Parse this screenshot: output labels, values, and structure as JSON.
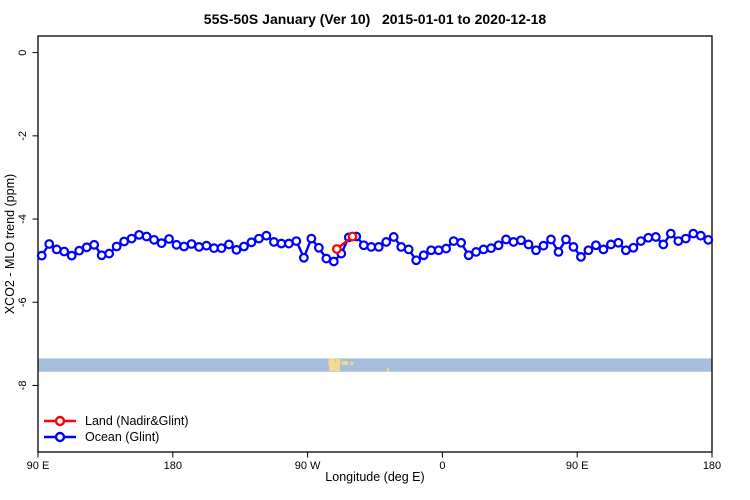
{
  "chart_data": {
    "type": "line",
    "title": "55S-50S January (Ver 10)   2015-01-01 to 2020-12-18",
    "xlabel": "Longitude (deg E)",
    "ylabel": "XCO2 - MLO trend (ppm)",
    "x_units_note": "deg E plotted 90..540, continuing eastward past 180 (270=90W, 360=0, 450=90E)",
    "xlim": [
      90,
      540
    ],
    "ylim": [
      -9.6,
      0.4
    ],
    "grid": false,
    "x_ticks": [
      {
        "pos": 90,
        "label": "90 E"
      },
      {
        "pos": 180,
        "label": "180"
      },
      {
        "pos": 270,
        "label": "90 W"
      },
      {
        "pos": 360,
        "label": "0"
      },
      {
        "pos": 450,
        "label": "90 E"
      },
      {
        "pos": 540,
        "label": "180"
      }
    ],
    "y_ticks": [
      {
        "pos": 0,
        "label": "0"
      },
      {
        "pos": -2,
        "label": "-2"
      },
      {
        "pos": -4,
        "label": "-4"
      },
      {
        "pos": -6,
        "label": "-6"
      },
      {
        "pos": -8,
        "label": "-8"
      }
    ],
    "legend": {
      "position": "bottom-left",
      "entries": [
        {
          "label": "Land (Nadir&Glint)",
          "color": "#FF0000"
        },
        {
          "label": "Ocean (Glint)",
          "color": "#0000FF"
        }
      ]
    },
    "series": [
      {
        "name": "Ocean (Glint)",
        "color": "#0000FF",
        "marker": "open-circle",
        "points": [
          [
            92.5,
            -4.88
          ],
          [
            97.5,
            -4.6
          ],
          [
            102.5,
            -4.73
          ],
          [
            107.5,
            -4.78
          ],
          [
            112.5,
            -4.88
          ],
          [
            117.5,
            -4.76
          ],
          [
            122.5,
            -4.68
          ],
          [
            127.5,
            -4.62
          ],
          [
            132.5,
            -4.87
          ],
          [
            137.5,
            -4.83
          ],
          [
            142.5,
            -4.66
          ],
          [
            147.5,
            -4.54
          ],
          [
            152.5,
            -4.47
          ],
          [
            157.5,
            -4.38
          ],
          [
            162.5,
            -4.42
          ],
          [
            167.5,
            -4.5
          ],
          [
            172.5,
            -4.58
          ],
          [
            177.5,
            -4.48
          ],
          [
            182.5,
            -4.62
          ],
          [
            187.5,
            -4.66
          ],
          [
            192.5,
            -4.6
          ],
          [
            197.5,
            -4.67
          ],
          [
            202.5,
            -4.64
          ],
          [
            207.5,
            -4.7
          ],
          [
            212.5,
            -4.7
          ],
          [
            217.5,
            -4.61
          ],
          [
            222.5,
            -4.74
          ],
          [
            227.5,
            -4.66
          ],
          [
            232.5,
            -4.56
          ],
          [
            237.5,
            -4.47
          ],
          [
            242.5,
            -4.4
          ],
          [
            247.5,
            -4.55
          ],
          [
            252.5,
            -4.59
          ],
          [
            257.5,
            -4.59
          ],
          [
            262.5,
            -4.53
          ],
          [
            267.5,
            -4.93
          ],
          [
            272.5,
            -4.47
          ],
          [
            277.5,
            -4.69
          ],
          [
            282.5,
            -4.95
          ],
          [
            287.5,
            -5.02
          ],
          [
            292.5,
            -4.83
          ],
          [
            297.5,
            -4.44
          ],
          [
            302.5,
            -4.42
          ],
          [
            307.5,
            -4.63
          ],
          [
            312.5,
            -4.67
          ],
          [
            317.5,
            -4.67
          ],
          [
            322.5,
            -4.55
          ],
          [
            327.5,
            -4.43
          ],
          [
            332.5,
            -4.67
          ],
          [
            337.5,
            -4.73
          ],
          [
            342.5,
            -4.99
          ],
          [
            347.5,
            -4.87
          ],
          [
            352.5,
            -4.75
          ],
          [
            357.5,
            -4.75
          ],
          [
            362.5,
            -4.71
          ],
          [
            367.5,
            -4.53
          ],
          [
            372.5,
            -4.57
          ],
          [
            377.5,
            -4.87
          ],
          [
            382.5,
            -4.79
          ],
          [
            387.5,
            -4.73
          ],
          [
            392.5,
            -4.7
          ],
          [
            397.5,
            -4.63
          ],
          [
            402.5,
            -4.49
          ],
          [
            407.5,
            -4.55
          ],
          [
            412.5,
            -4.51
          ],
          [
            417.5,
            -4.61
          ],
          [
            422.5,
            -4.75
          ],
          [
            427.5,
            -4.64
          ],
          [
            432.5,
            -4.49
          ],
          [
            437.5,
            -4.79
          ],
          [
            442.5,
            -4.49
          ],
          [
            447.5,
            -4.67
          ],
          [
            452.5,
            -4.91
          ],
          [
            457.5,
            -4.75
          ],
          [
            462.5,
            -4.63
          ],
          [
            467.5,
            -4.73
          ],
          [
            472.5,
            -4.61
          ],
          [
            477.5,
            -4.57
          ],
          [
            482.5,
            -4.75
          ],
          [
            487.5,
            -4.69
          ],
          [
            492.5,
            -4.53
          ],
          [
            497.5,
            -4.45
          ],
          [
            502.5,
            -4.43
          ],
          [
            507.5,
            -4.61
          ],
          [
            512.5,
            -4.35
          ],
          [
            517.5,
            -4.53
          ],
          [
            522.5,
            -4.47
          ],
          [
            527.5,
            -4.35
          ],
          [
            532.5,
            -4.4
          ],
          [
            537.5,
            -4.5
          ]
        ]
      },
      {
        "name": "Land (Nadir&Glint)",
        "color": "#FF0000",
        "marker": "open-circle",
        "points": [
          [
            289.5,
            -4.72
          ],
          [
            300.0,
            -4.42
          ]
        ]
      }
    ],
    "map_strip": {
      "description": "latitude-band world map strip: ocean band with land patches (southern South America, Falklands, South Georgia)",
      "ocean_color": "#A5BEDC",
      "land_color": "#F6D98A",
      "y_top": -7.35,
      "y_bottom": -7.67,
      "land_patches": [
        [
          284.0,
          288.5,
          0.0,
          0.55
        ],
        [
          284.5,
          291.5,
          0.3,
          0.95
        ],
        [
          289.0,
          292.0,
          0.05,
          0.45
        ],
        [
          293.0,
          297.0,
          0.2,
          0.5
        ],
        [
          298.5,
          300.5,
          0.25,
          0.5
        ],
        [
          323.0,
          324.3,
          0.7,
          1.0
        ]
      ]
    }
  }
}
